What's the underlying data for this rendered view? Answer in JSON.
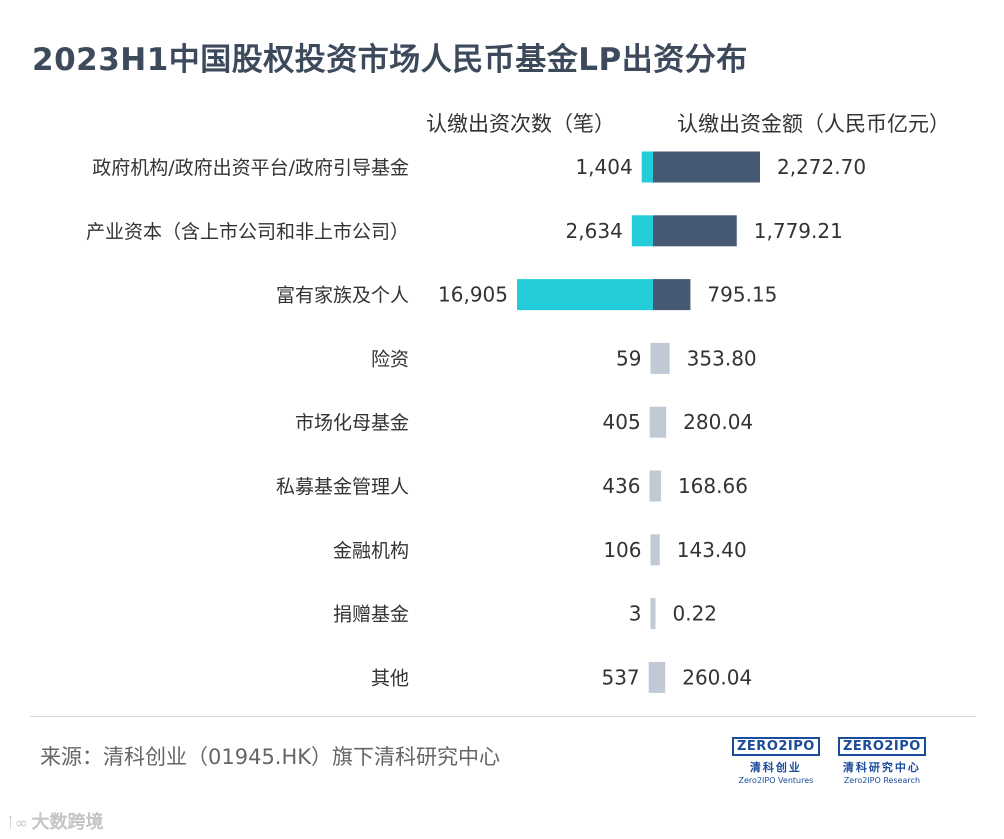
{
  "title": "2023H1中国股权投资市场人民币基金LP出资分布",
  "chart_data": {
    "type": "bar",
    "layout": "diverging-horizontal",
    "title": "2023H1中国股权投资市场人民币基金LP出资分布",
    "categories": [
      "政府机构/政府出资平台/政府引导基金",
      "产业资本（含上市公司和非上市公司）",
      "富有家族及个人",
      "险资",
      "市场化母基金",
      "私募基金管理人",
      "金融机构",
      "捐赠基金",
      "其他"
    ],
    "series": [
      {
        "name": "认缴出资次数（笔）",
        "values": [
          1404,
          2634,
          16905,
          59,
          405,
          436,
          106,
          3,
          537
        ],
        "labels": [
          "1,404",
          "2,634",
          "16,905",
          "59",
          "405",
          "436",
          "106",
          "3",
          "537"
        ]
      },
      {
        "name": "认缴出资金额（人民币亿元）",
        "values": [
          2272.7,
          1779.21,
          795.15,
          353.8,
          280.04,
          168.66,
          143.4,
          0.22,
          260.04
        ],
        "labels": [
          "2,272.70",
          "1,779.21",
          "795.15",
          "353.80",
          "280.04",
          "168.66",
          "143.40",
          "0.22",
          "260.04"
        ]
      }
    ],
    "highlight_rows": 3,
    "colors": {
      "count": "#22cdd9",
      "amount": "#465a73",
      "muted": "#c1c9d7",
      "text": "#333333"
    }
  },
  "header": {
    "count_label": "认缴出资次数（笔）",
    "amount_label": "认缴出资金额（人民币亿元）"
  },
  "footer": {
    "source": "来源：清科创业（01945.HK）旗下清科研究中心",
    "logo1_badge": "ZERO2IPO",
    "logo1_cn": "清科创业",
    "logo1_en": "Zero2IPO Ventures",
    "logo2_badge": "ZERO2IPO",
    "logo2_cn": "清科研究中心",
    "logo2_en": "Zero2IPO Research",
    "watermark": "大数跨境",
    "watermark_icon": "ᛙ∞"
  }
}
